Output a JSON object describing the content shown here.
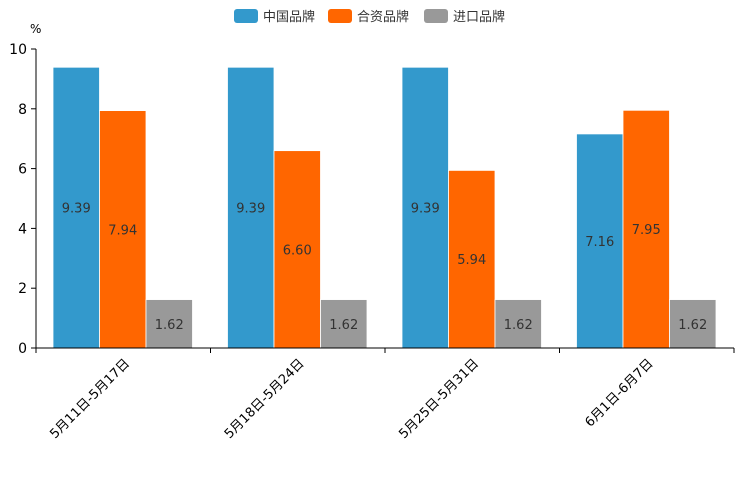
{
  "chart_data": {
    "type": "bar",
    "title": "",
    "xlabel": "",
    "ylabel": "",
    "unit_label": "%",
    "ylim": [
      0,
      10
    ],
    "yticks": [
      0,
      2,
      4,
      6,
      8,
      10
    ],
    "categories": [
      "5月11日-5月17日",
      "5月18日-5月24日",
      "5月25日-5月31日",
      "6月1日-6月7日"
    ],
    "series": [
      {
        "name": "中国品牌",
        "color": "#3399cc",
        "values": [
          9.39,
          9.39,
          9.39,
          7.16
        ],
        "labels": [
          "9.39",
          "9.39",
          "9.39",
          "7.16"
        ]
      },
      {
        "name": "合资品牌",
        "color": "#ff6600",
        "values": [
          7.94,
          6.6,
          5.94,
          7.95
        ],
        "labels": [
          "7.94",
          "6.60",
          "5.94",
          "7.95"
        ]
      },
      {
        "name": "进口品牌",
        "color": "#999999",
        "values": [
          1.62,
          1.62,
          1.62,
          1.62
        ],
        "labels": [
          "1.62",
          "1.62",
          "1.62",
          "1.62"
        ]
      }
    ],
    "legend_position": "top-center",
    "grid": false
  }
}
